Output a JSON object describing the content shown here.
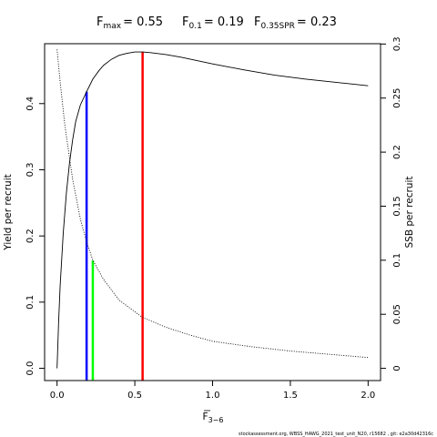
{
  "chart_data": {
    "type": "line",
    "title": {
      "items": [
        {
          "symbol": "F",
          "sub": "max",
          "value": "= 0.55"
        },
        {
          "symbol": "F",
          "sub": "0.1",
          "value": "= 0.19"
        },
        {
          "symbol": "F",
          "sub": "0.35SPR",
          "value": "= 0.23"
        }
      ]
    },
    "xlabel": {
      "symbol": "F",
      "sub": "3−6",
      "overline": true
    },
    "ylabel_left": "Yield per recruit",
    "ylabel_right": "SSB per recruit",
    "xlim": [
      -0.08,
      2.08
    ],
    "ylim_left": [
      -0.0185,
      0.4905
    ],
    "ylim_right": [
      -0.0113,
      0.3003
    ],
    "x_ticks": [
      0.0,
      0.5,
      1.0,
      1.5,
      2.0
    ],
    "x_tick_labels": [
      "0.0",
      "0.5",
      "1.0",
      "1.5",
      "2.0"
    ],
    "y_ticks_left": [
      0.0,
      0.1,
      0.2,
      0.3,
      0.4
    ],
    "y_tick_labels_left": [
      "0.0",
      "0.1",
      "0.2",
      "0.3",
      "0.4"
    ],
    "y_ticks_right": [
      0.0,
      0.05,
      0.1,
      0.15,
      0.2,
      0.25,
      0.3
    ],
    "y_tick_labels_right": [
      "0",
      "0.05",
      "0.1",
      "0.15",
      "0.2",
      "0.25",
      "0.3"
    ],
    "series": [
      {
        "axis": "left",
        "style": "solid",
        "color": "#000000",
        "x": [
          0.0,
          0.01,
          0.02,
          0.04,
          0.06,
          0.08,
          0.1,
          0.12,
          0.15,
          0.19,
          0.23,
          0.27,
          0.3,
          0.35,
          0.4,
          0.45,
          0.5,
          0.55,
          0.6,
          0.7,
          0.8,
          0.9,
          1.0,
          1.2,
          1.4,
          1.6,
          1.8,
          2.0
        ],
        "y": [
          0.0,
          0.07,
          0.125,
          0.205,
          0.265,
          0.31,
          0.345,
          0.373,
          0.398,
          0.418,
          0.437,
          0.45,
          0.458,
          0.467,
          0.473,
          0.476,
          0.478,
          0.478,
          0.477,
          0.474,
          0.47,
          0.465,
          0.46,
          0.451,
          0.443,
          0.437,
          0.432,
          0.427
        ]
      },
      {
        "axis": "right",
        "style": "dotted",
        "color": "#000000",
        "x": [
          0.0,
          0.02,
          0.05,
          0.1,
          0.15,
          0.19,
          0.23,
          0.3,
          0.4,
          0.55,
          0.7,
          0.85,
          1.0,
          1.25,
          1.5,
          1.75,
          2.0
        ],
        "y": [
          0.295,
          0.265,
          0.225,
          0.175,
          0.138,
          0.117,
          0.1,
          0.082,
          0.063,
          0.047,
          0.038,
          0.031,
          0.025,
          0.02,
          0.016,
          0.013,
          0.01
        ]
      }
    ],
    "reference_lines": [
      {
        "name": "Fmax",
        "x": 0.55,
        "y_top": 0.478,
        "color": "#ff0000"
      },
      {
        "name": "F0.1",
        "x": 0.19,
        "y_top": 0.418,
        "color": "#0000ff"
      },
      {
        "name": "F0.35SPR",
        "x": 0.23,
        "y_top": 0.163,
        "color": "#00ff00"
      }
    ],
    "footer": "stockassessment.org,  WBSS_HAWG_2021_test_unit_N20,  r15682 ,  git:  e2a30d42316c"
  }
}
